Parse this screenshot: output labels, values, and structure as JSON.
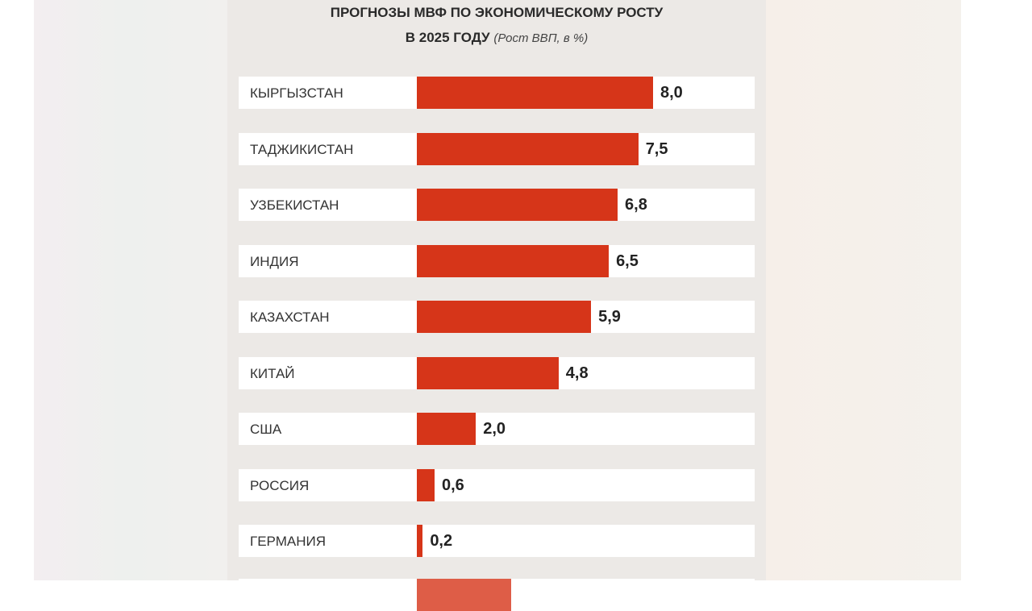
{
  "chart_data": {
    "type": "bar",
    "orientation": "horizontal",
    "title": "ПРОГНОЗЫ МВФ ПО ЭКОНОМИЧЕСКОМУ РОСТУ",
    "title_line2": "В 2025 ГОДУ",
    "subtitle": "(Рост ВВП, в %)",
    "categories": [
      "КЫРГЫЗСТАН",
      "ТАДЖИКИСТАН",
      "УЗБЕКИСТАН",
      "ИНДИЯ",
      "КАЗАХСТАН",
      "КИТАЙ",
      "США",
      "РОССИЯ",
      "ГЕРМАНИЯ"
    ],
    "values": [
      8.0,
      7.5,
      6.8,
      6.5,
      5.9,
      4.8,
      2.0,
      0.6,
      0.2
    ],
    "value_labels": [
      "8,0",
      "7,5",
      "6,8",
      "6,5",
      "5,9",
      "4,8",
      "2,0",
      "0,6",
      "0,2"
    ],
    "bar_color": "#d63519",
    "xlim": [
      0,
      8.0
    ],
    "grid": false
  }
}
